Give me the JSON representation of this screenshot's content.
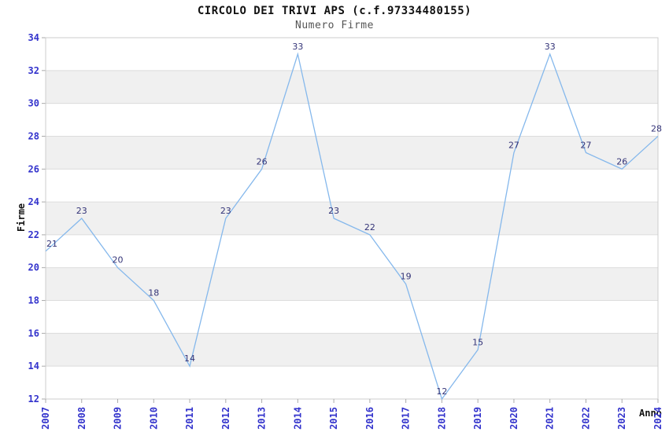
{
  "title": "CIRCOLO DEI TRIVI APS (c.f.97334480155)",
  "subtitle": "Numero Firme",
  "chart_data": {
    "type": "line",
    "x": [
      2007,
      2008,
      2009,
      2010,
      2011,
      2012,
      2013,
      2014,
      2015,
      2016,
      2017,
      2018,
      2019,
      2020,
      2021,
      2022,
      2023,
      2024
    ],
    "values": [
      21,
      23,
      20,
      18,
      14,
      23,
      26,
      33,
      23,
      22,
      19,
      12,
      15,
      27,
      33,
      27,
      26,
      28
    ],
    "title": "CIRCOLO DEI TRIVI APS (c.f.97334480155)",
    "subtitle": "Numero Firme",
    "xlabel": "Anno",
    "ylabel": "Firme",
    "ylim": [
      12,
      34
    ],
    "ytick_step": 2,
    "legend": "none",
    "grid": "horizontal-bands-alternating",
    "colors": {
      "line": "#85b8ec",
      "point_label": "#333377",
      "tick_label": "#3333cc",
      "band_gray": "#f0f0f0",
      "band_white": "#ffffff",
      "grid_line": "#dcdcdc",
      "border": "#cccccc",
      "tick_mark": "#aaaaaa",
      "title_color": "#111111",
      "subtitle_color": "#555555",
      "axis_title_color": "#111111"
    }
  }
}
